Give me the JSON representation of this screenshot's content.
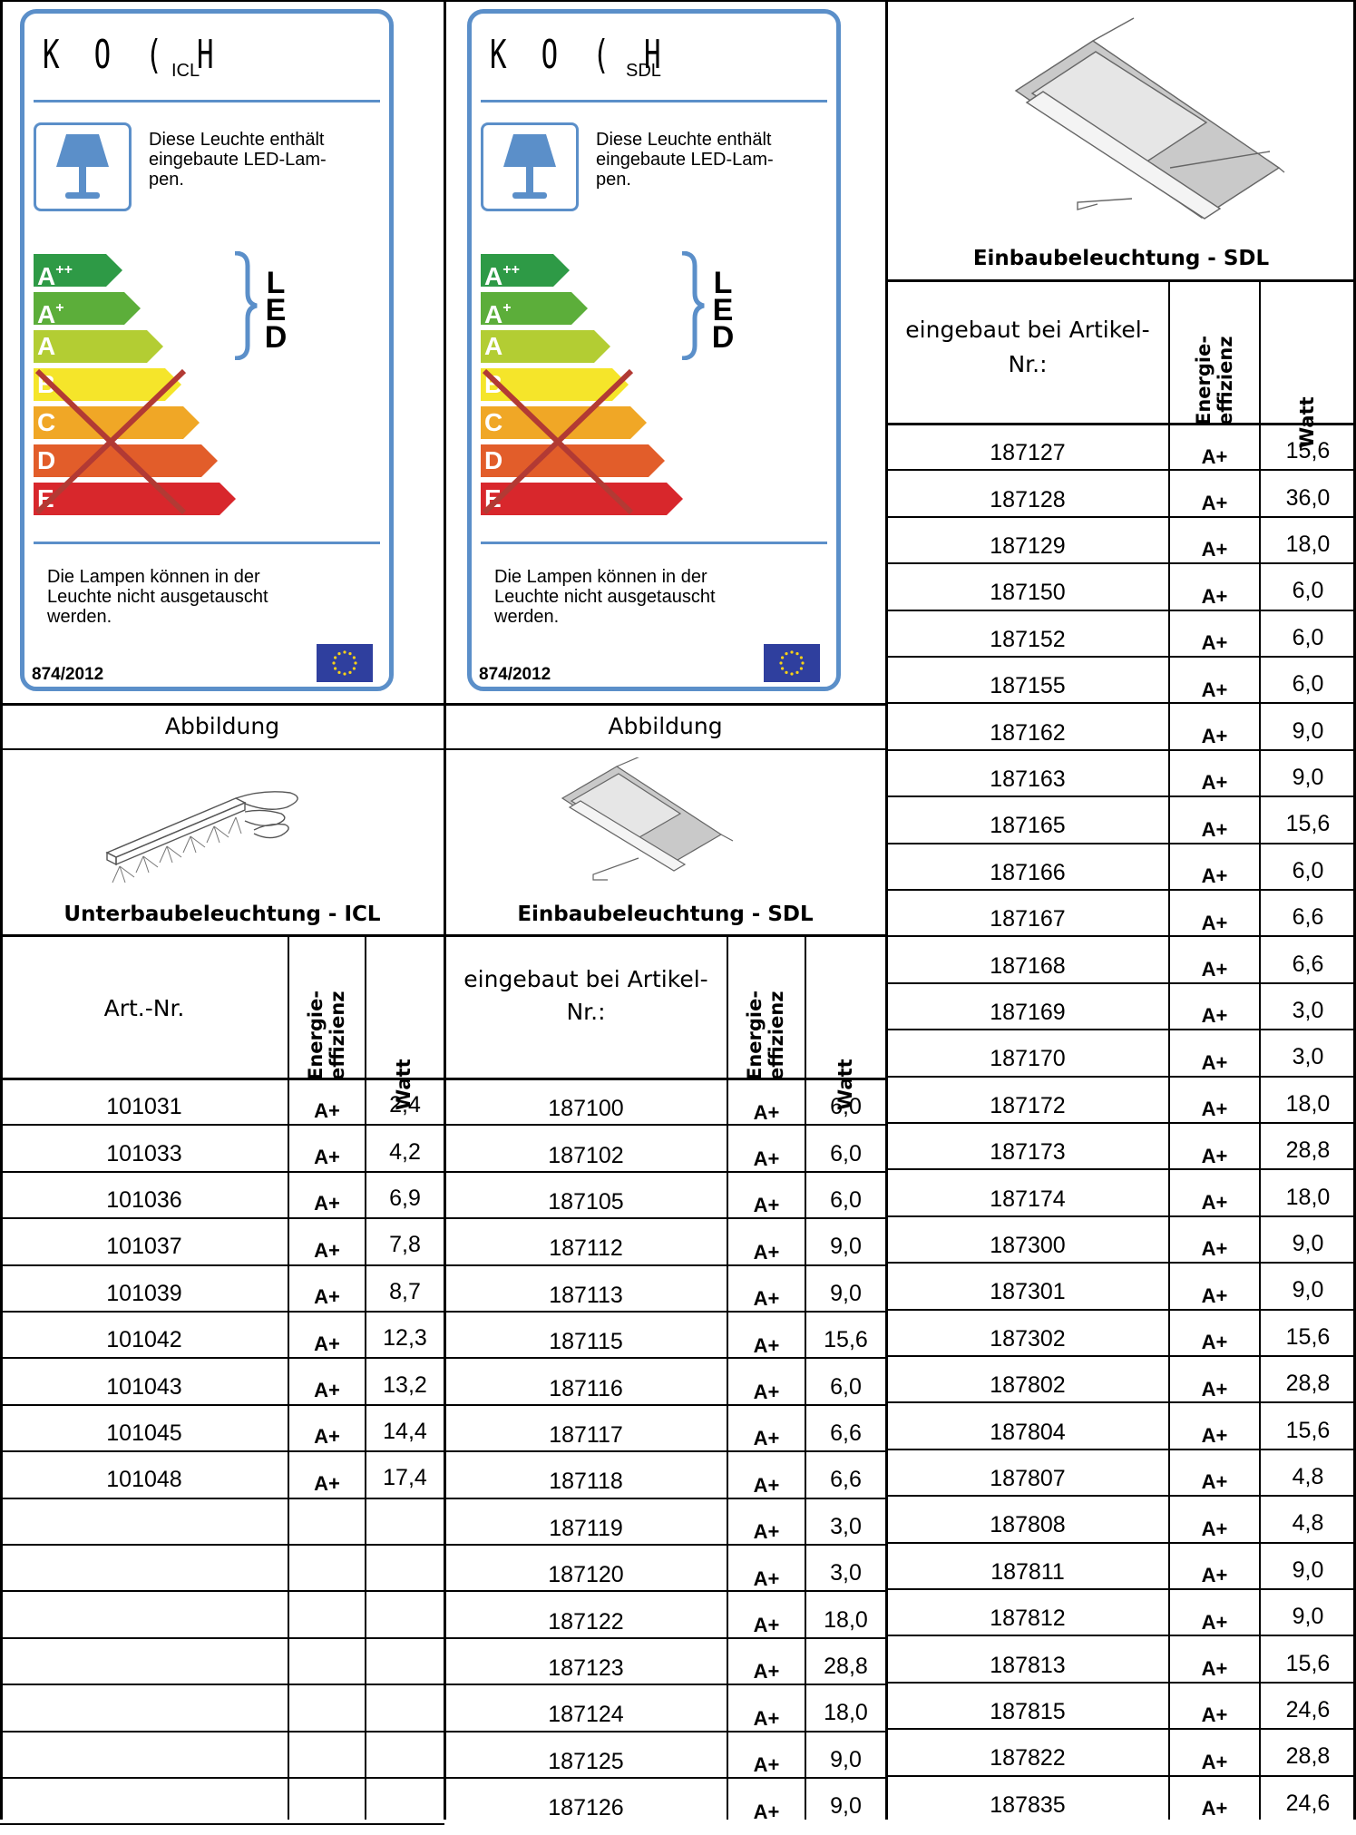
{
  "labels": [
    {
      "brand": "K O ( H",
      "model": "ICL",
      "text": [
        "Diese Leuchte enthält",
        "eingebaute LED-Lam-",
        "pen."
      ],
      "classes": [
        "A++",
        "A+",
        "A",
        "B",
        "C",
        "D",
        "E"
      ],
      "led_letters": [
        "L",
        "E",
        "D"
      ],
      "footer": [
        "Die Lampen können in der",
        "Leuchte nicht ausgetauscht",
        "werden."
      ],
      "regulation": "874/2012"
    },
    {
      "brand": "K O ( H",
      "model": "SDL",
      "text": [
        "Diese Leuchte enthält",
        "eingebaute LED-Lam-",
        "pen."
      ],
      "classes": [
        "A++",
        "A+",
        "A",
        "B",
        "C",
        "D",
        "E"
      ],
      "led_letters": [
        "L",
        "E",
        "D"
      ],
      "footer": [
        "Die Lampen können in der",
        "Leuchte nicht ausgetauscht",
        "werden."
      ],
      "regulation": "874/2012"
    }
  ],
  "class_colors": [
    "#2e9a46",
    "#5cae3a",
    "#b3cd33",
    "#f5e52a",
    "#f0a726",
    "#e25d2a",
    "#d8272c"
  ],
  "abbildung_label": "Abbildung",
  "products": {
    "icl_title": "Unterbaubeleuchtung - ICL",
    "sdl_title": "Einbaubeleuchtung - SDL",
    "sdl_title_right": "Einbaubeleuchtung - SDL"
  },
  "headers": {
    "art_nr": "Art.-Nr.",
    "eingebaut_line1": "eingebaut bei Artikel-",
    "eingebaut_line2": "Nr.:",
    "energie_line1": "Energie-",
    "energie_line2": "effizienz",
    "watt": "Watt"
  },
  "icl_rows": [
    {
      "nr": "101031",
      "class": "A+",
      "watt": "2,4"
    },
    {
      "nr": "101033",
      "class": "A+",
      "watt": "4,2"
    },
    {
      "nr": "101036",
      "class": "A+",
      "watt": "6,9"
    },
    {
      "nr": "101037",
      "class": "A+",
      "watt": "7,8"
    },
    {
      "nr": "101039",
      "class": "A+",
      "watt": "8,7"
    },
    {
      "nr": "101042",
      "class": "A+",
      "watt": "12,3"
    },
    {
      "nr": "101043",
      "class": "A+",
      "watt": "13,2"
    },
    {
      "nr": "101045",
      "class": "A+",
      "watt": "14,4"
    },
    {
      "nr": "101048",
      "class": "A+",
      "watt": "17,4"
    }
  ],
  "sdl_rows_middle": [
    {
      "nr": "187100",
      "class": "A+",
      "watt": "6,0"
    },
    {
      "nr": "187102",
      "class": "A+",
      "watt": "6,0"
    },
    {
      "nr": "187105",
      "class": "A+",
      "watt": "6,0"
    },
    {
      "nr": "187112",
      "class": "A+",
      "watt": "9,0"
    },
    {
      "nr": "187113",
      "class": "A+",
      "watt": "9,0"
    },
    {
      "nr": "187115",
      "class": "A+",
      "watt": "15,6"
    },
    {
      "nr": "187116",
      "class": "A+",
      "watt": "6,0"
    },
    {
      "nr": "187117",
      "class": "A+",
      "watt": "6,6"
    },
    {
      "nr": "187118",
      "class": "A+",
      "watt": "6,6"
    },
    {
      "nr": "187119",
      "class": "A+",
      "watt": "3,0"
    },
    {
      "nr": "187120",
      "class": "A+",
      "watt": "3,0"
    },
    {
      "nr": "187122",
      "class": "A+",
      "watt": "18,0"
    },
    {
      "nr": "187123",
      "class": "A+",
      "watt": "28,8"
    },
    {
      "nr": "187124",
      "class": "A+",
      "watt": "18,0"
    },
    {
      "nr": "187125",
      "class": "A+",
      "watt": "9,0"
    },
    {
      "nr": "187126",
      "class": "A+",
      "watt": "9,0"
    }
  ],
  "sdl_rows_right": [
    {
      "nr": "187127",
      "class": "A+",
      "watt": "15,6"
    },
    {
      "nr": "187128",
      "class": "A+",
      "watt": "36,0"
    },
    {
      "nr": "187129",
      "class": "A+",
      "watt": "18,0"
    },
    {
      "nr": "187150",
      "class": "A+",
      "watt": "6,0"
    },
    {
      "nr": "187152",
      "class": "A+",
      "watt": "6,0"
    },
    {
      "nr": "187155",
      "class": "A+",
      "watt": "6,0"
    },
    {
      "nr": "187162",
      "class": "A+",
      "watt": "9,0"
    },
    {
      "nr": "187163",
      "class": "A+",
      "watt": "9,0"
    },
    {
      "nr": "187165",
      "class": "A+",
      "watt": "15,6"
    },
    {
      "nr": "187166",
      "class": "A+",
      "watt": "6,0"
    },
    {
      "nr": "187167",
      "class": "A+",
      "watt": "6,6"
    },
    {
      "nr": "187168",
      "class": "A+",
      "watt": "6,6"
    },
    {
      "nr": "187169",
      "class": "A+",
      "watt": "3,0"
    },
    {
      "nr": "187170",
      "class": "A+",
      "watt": "3,0"
    },
    {
      "nr": "187172",
      "class": "A+",
      "watt": "18,0"
    },
    {
      "nr": "187173",
      "class": "A+",
      "watt": "28,8"
    },
    {
      "nr": "187174",
      "class": "A+",
      "watt": "18,0"
    },
    {
      "nr": "187300",
      "class": "A+",
      "watt": "9,0"
    },
    {
      "nr": "187301",
      "class": "A+",
      "watt": "9,0"
    },
    {
      "nr": "187302",
      "class": "A+",
      "watt": "15,6"
    },
    {
      "nr": "187802",
      "class": "A+",
      "watt": "28,8"
    },
    {
      "nr": "187804",
      "class": "A+",
      "watt": "15,6"
    },
    {
      "nr": "187807",
      "class": "A+",
      "watt": "4,8"
    },
    {
      "nr": "187808",
      "class": "A+",
      "watt": "4,8"
    },
    {
      "nr": "187811",
      "class": "A+",
      "watt": "9,0"
    },
    {
      "nr": "187812",
      "class": "A+",
      "watt": "9,0"
    },
    {
      "nr": "187813",
      "class": "A+",
      "watt": "15,6"
    },
    {
      "nr": "187815",
      "class": "A+",
      "watt": "24,6"
    },
    {
      "nr": "187822",
      "class": "A+",
      "watt": "28,8"
    },
    {
      "nr": "187835",
      "class": "A+",
      "watt": "24,6"
    }
  ]
}
